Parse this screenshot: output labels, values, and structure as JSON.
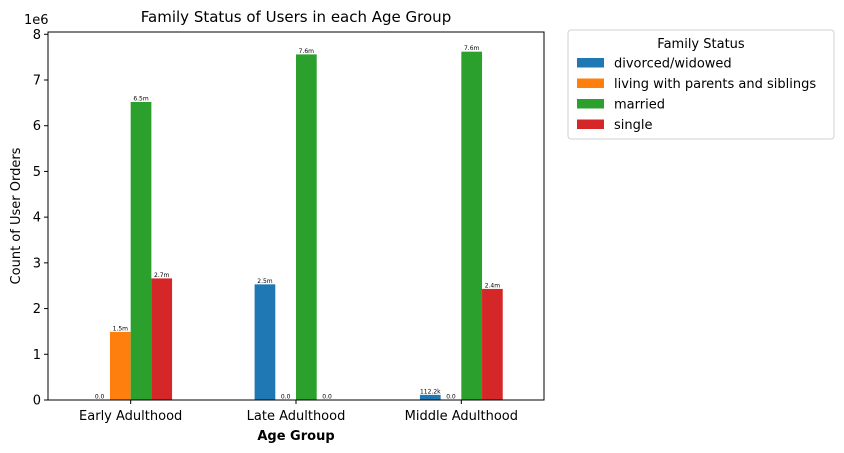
{
  "chart_data": {
    "type": "bar",
    "title": "Family Status of Users in each Age Group",
    "xlabel": "Age Group",
    "ylabel": "Count of User Orders",
    "y_offset_label": "1e6",
    "ylim": [
      0,
      8.05
    ],
    "yticks": [
      "0",
      "1",
      "2",
      "3",
      "4",
      "5",
      "6",
      "7",
      "8"
    ],
    "grid": false,
    "legend_title": "Family Status",
    "legend_position": "outside-right-top",
    "categories": [
      "Early Adulthood",
      "Late Adulthood",
      "Middle Adulthood"
    ],
    "series": [
      {
        "name": "divorced/widowed",
        "color": "#1f77b4",
        "values": [
          0.0,
          2.53,
          0.112
        ],
        "labels": [
          "0.0",
          "2.5m",
          "112.2k"
        ]
      },
      {
        "name": "living with parents and siblings",
        "color": "#ff7f0e",
        "values": [
          1.49,
          0.0,
          0.0
        ],
        "labels": [
          "1.5m",
          "0.0",
          "0.0"
        ]
      },
      {
        "name": "married",
        "color": "#2ca02c",
        "values": [
          6.52,
          7.56,
          7.62
        ],
        "labels": [
          "6.5m",
          "7.6m",
          "7.6m"
        ]
      },
      {
        "name": "single",
        "color": "#d62728",
        "values": [
          2.66,
          0.0,
          2.43
        ],
        "labels": [
          "2.7m",
          "0.0",
          "2.4m"
        ]
      }
    ]
  }
}
